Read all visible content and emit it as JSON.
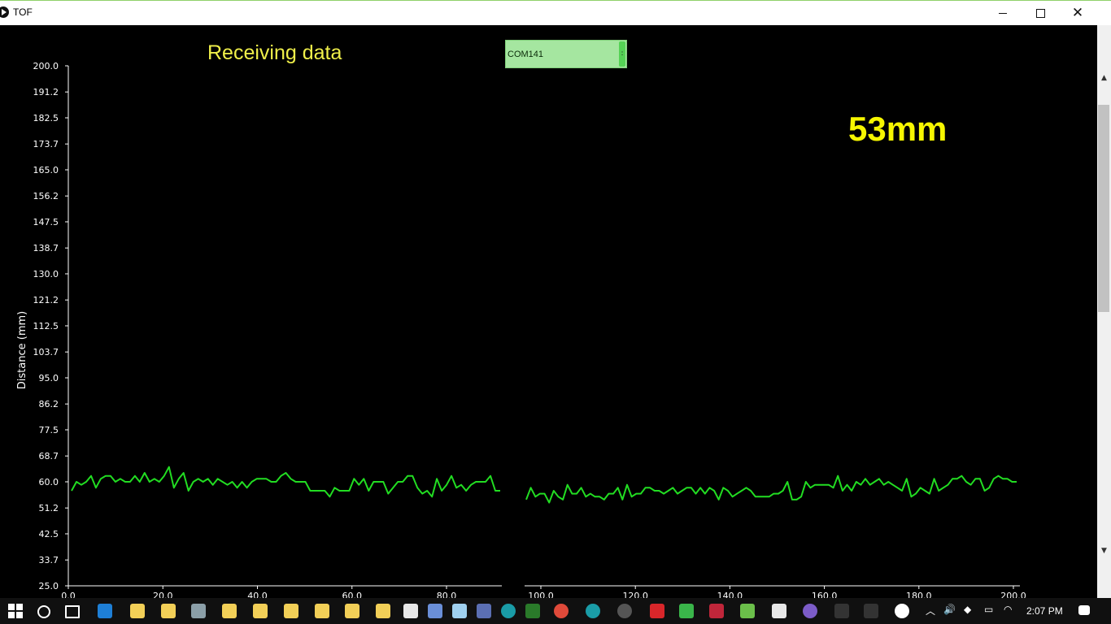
{
  "window": {
    "title": "TOF"
  },
  "status": {
    "receiving": "Receiving data"
  },
  "port": {
    "value": "COM141",
    "button_glyph": ":"
  },
  "reading": {
    "value": "53mm"
  },
  "taskbar": {
    "time": "2:07 PM"
  },
  "chart_data": {
    "type": "line",
    "ylabel": "Distance (mm)",
    "xlabel": "",
    "ylim": [
      25.0,
      200.0
    ],
    "xlim": [
      0.0,
      200.0
    ],
    "yticks": [
      "200.0",
      "191.2",
      "182.5",
      "173.7",
      "165.0",
      "156.2",
      "147.5",
      "138.7",
      "130.0",
      "121.2",
      "112.5",
      "103.7",
      "95.0",
      "86.2",
      "77.5",
      "68.7",
      "60.0",
      "51.2",
      "42.5",
      "33.7",
      "25.0"
    ],
    "xticks_left": [
      "0.0",
      "20.0",
      "40.0",
      "60.0",
      "80.0"
    ],
    "xticks_right": [
      "100.0",
      "120.0",
      "140.0",
      "160.0",
      "180.0",
      "200.0"
    ],
    "series_color": "#22dd22",
    "series": [
      {
        "x_start": 0,
        "x_step": 1,
        "values": [
          57,
          60,
          59,
          60,
          62,
          58,
          61,
          62,
          62,
          60,
          61,
          60,
          60,
          62,
          60,
          63,
          60,
          61,
          60,
          62,
          65,
          58,
          61,
          63,
          57,
          60,
          61,
          60,
          61,
          59,
          61,
          60,
          59,
          60,
          58,
          60,
          58,
          60,
          61,
          61,
          61,
          60,
          60,
          62,
          63,
          61,
          60,
          60,
          60,
          57,
          57,
          57,
          57,
          55,
          58,
          57,
          57,
          57,
          61,
          59,
          61,
          57,
          60,
          60,
          60,
          56,
          58,
          60,
          60,
          62,
          62,
          58,
          56,
          57,
          55,
          61,
          57,
          59,
          62,
          58,
          59,
          57,
          59,
          60,
          60,
          60,
          62,
          57,
          57
        ]
      },
      {
        "x_start": 97,
        "x_step": 1,
        "values": [
          54,
          58,
          55,
          56,
          56,
          53,
          57,
          55,
          54,
          59,
          56,
          56,
          58,
          55,
          56,
          55,
          55,
          54,
          56,
          56,
          58,
          54,
          59,
          55,
          56,
          56,
          58,
          58,
          57,
          57,
          56,
          57,
          58,
          56,
          57,
          58,
          58,
          56,
          58,
          56,
          58,
          57,
          54,
          58,
          57,
          55,
          56,
          57,
          58,
          57,
          55,
          55,
          55,
          55,
          56,
          56,
          57,
          60,
          54,
          54,
          55,
          60,
          58,
          59,
          59,
          59,
          59,
          58,
          62,
          57,
          59,
          57,
          60,
          59,
          61,
          59,
          60,
          61,
          59,
          60,
          59,
          58,
          57,
          61,
          55,
          56,
          58,
          57,
          56,
          61,
          57,
          58,
          59,
          61,
          61,
          62,
          60,
          59,
          61,
          61,
          57,
          58,
          61,
          62,
          61,
          61,
          60,
          60
        ]
      }
    ]
  }
}
